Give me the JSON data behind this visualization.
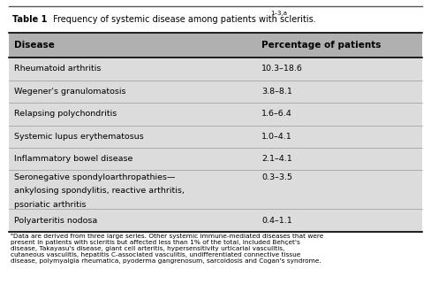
{
  "title_bold": "Table 1",
  "title_rest": " Frequency of systemic disease among patients with scleritis.",
  "title_superscript": "1–3,a",
  "header": [
    "Disease",
    "Percentage of patients"
  ],
  "rows": [
    [
      "Rheumatoid arthritis",
      "10.3–18.6"
    ],
    [
      "Wegener's granulomatosis",
      "3.8–8.1"
    ],
    [
      "Relapsing polychondritis",
      "1.6–6.4"
    ],
    [
      "Systemic lupus erythematosus",
      "1.0–4.1"
    ],
    [
      "Inflammatory bowel disease",
      "2.1–4.1"
    ],
    [
      "Seronegative spondyloarthropathies—\nankylosing spondylitis, reactive arthritis,\npsoriatic arthritis",
      "0.3–3.5"
    ],
    [
      "Polyarteritis nodosa",
      "0.4–1.1"
    ]
  ],
  "footnote": "ᵃData are derived from three large series. Other systemic immune-mediated diseases that were present in patients with scleritis but affected less than 1% of the total, included Behçet's disease, Takayasu's disease, giant cell arteritis, hypersensitivity urticarial vasculitis, cutaneous vasculitis, hepatitis C-associated vasculitis, undifferentiated connective tissue disease, polymyalgia rheumatica, pyoderma gangrenosum, sarcoidosis and Cogan's syndrome.",
  "bg_color": "#ffffff",
  "row_bg_color": "#dcdcdc",
  "header_bg": "#b0b0b0",
  "title_bg": "#ffffff",
  "border_color": "#000000",
  "text_color": "#000000",
  "fig_width": 4.88,
  "fig_height": 3.3,
  "dpi": 100
}
